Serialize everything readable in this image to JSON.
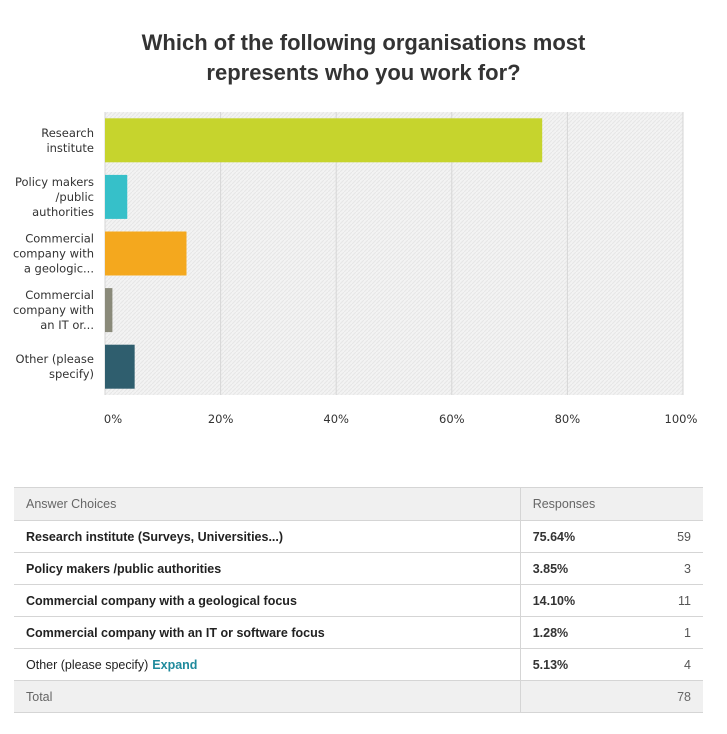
{
  "title_lines": [
    "Which of the following organisations most",
    "represents who you work for?"
  ],
  "chart_data": {
    "type": "bar",
    "orientation": "horizontal",
    "categories": [
      [
        "Research",
        "institute"
      ],
      [
        "Policy makers",
        "/public",
        "authorities"
      ],
      [
        "Commercial",
        "company with",
        "a geologic..."
      ],
      [
        "Commercial",
        "company with",
        "an IT or..."
      ],
      [
        "Other (please",
        "specify)"
      ]
    ],
    "values": [
      75.64,
      3.85,
      14.1,
      1.28,
      5.13
    ],
    "colors": [
      "#c6d42d",
      "#36c0c9",
      "#f4a81e",
      "#8a8a7a",
      "#2f5e6e"
    ],
    "xlim": [
      0,
      100
    ],
    "ticks": [
      "0%",
      "20%",
      "40%",
      "60%",
      "80%",
      "100%"
    ],
    "grid": true
  },
  "table": {
    "header": {
      "choices": "Answer Choices",
      "responses": "Responses"
    },
    "rows": [
      {
        "choice": "Research institute (Surveys, Universities...)",
        "percent": "75.64%",
        "count": "59"
      },
      {
        "choice": "Policy makers /public authorities",
        "percent": "3.85%",
        "count": "3"
      },
      {
        "choice": "Commercial company with a geological focus",
        "percent": "14.10%",
        "count": "11"
      },
      {
        "choice": "Commercial company with an IT or software focus",
        "percent": "1.28%",
        "count": "1"
      },
      {
        "choice": "Other (please specify)",
        "percent": "5.13%",
        "count": "4",
        "link": "Expand"
      }
    ],
    "total": {
      "label": "Total",
      "count": "78"
    }
  }
}
